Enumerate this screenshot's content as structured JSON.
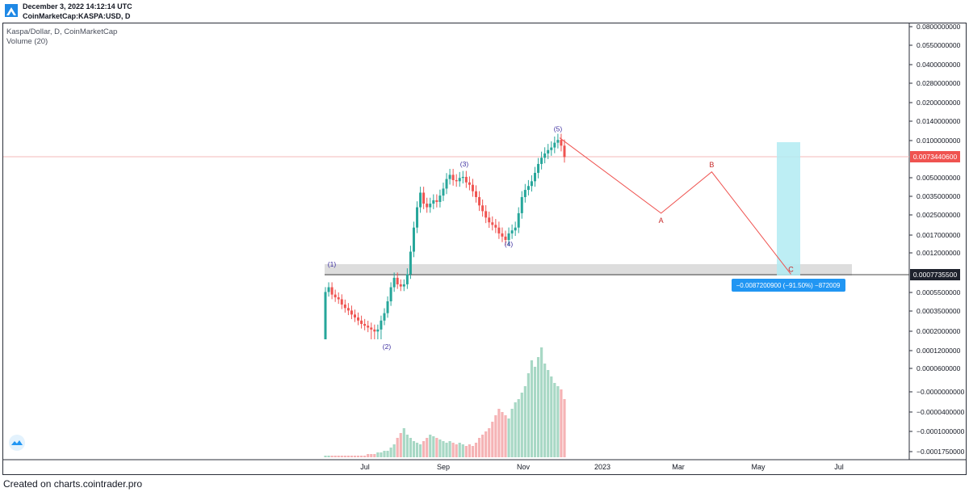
{
  "header": {
    "timestamp": "December 3, 2022 14:12:14 UTC",
    "symbol_line": "CoinMarketCap:KASPA:USD, D"
  },
  "legend": {
    "main": "Kaspa/Dollar, D, CoinMarketCap",
    "volume": "Volume (20)"
  },
  "footer": {
    "text": "Created on charts.cointrader.pro"
  },
  "colors": {
    "up": "#26a69a",
    "down": "#ef5350",
    "vol_up": "#a8d8c5",
    "vol_down": "#f5b3b5",
    "wave_label": "#3d2fa0",
    "abc_label": "#c62828",
    "projection_line": "#ef5350",
    "price_tag_red": "#ef5350",
    "price_tag_dark": "#1e222d",
    "measure_blue": "#2196f3",
    "target_box": "#b2ebf2",
    "support_zone": "#d9d9d9"
  },
  "chart_data": {
    "type": "candlestick",
    "title": "Kaspa/Dollar, D, CoinMarketCap",
    "y_scale": "log",
    "price_axis_labels": [
      "0.0800000000",
      "0.0550000000",
      "0.0400000000",
      "0.0280000000",
      "0.0200000000",
      "0.0140000000",
      "0.0100000000",
      "0.0073440600",
      "0.0050000000",
      "0.0035000000",
      "0.0025000000",
      "0.0017000000",
      "0.0012000000",
      "0.0007735500",
      "0.0005500000",
      "0.0003500000",
      "0.0002000000",
      "0.0001200000",
      "0.0000600000",
      "−0.0000000000",
      "−0.0000400000",
      "−0.0001000000",
      "−0.0001750000"
    ],
    "time_axis_labels": [
      "Jul",
      "Sep",
      "Nov",
      "2023",
      "Mar",
      "May",
      "Jul"
    ],
    "current_price": "0.0073440600",
    "support_price": "0.0007735500",
    "elliott_waves": [
      {
        "label": "(1)",
        "price": 0.00082
      },
      {
        "label": "(2)",
        "price": 0.00018
      },
      {
        "label": "(3)",
        "price": 0.0054
      },
      {
        "label": "(4)",
        "price": 0.0015
      },
      {
        "label": "(5)",
        "price": 0.0104
      }
    ],
    "projection": [
      {
        "label": "",
        "date": "2022-11-20",
        "price": 0.0104
      },
      {
        "label": "A",
        "date": "2023-02-14",
        "price": 0.0025
      },
      {
        "label": "B",
        "date": "2023-03-25",
        "price": 0.0055
      },
      {
        "label": "C",
        "date": "2023-05-25",
        "price": 0.00078
      }
    ],
    "measure_label": "−0.0087200900 (−91.50%) −872009",
    "series_close": [
      0.00052,
      0.00058,
      0.00049,
      0.00046,
      0.00044,
      0.00039,
      0.00036,
      0.00034,
      0.00031,
      0.00029,
      0.00027,
      0.00025,
      0.00024,
      0.00023,
      0.00022,
      0.00021,
      0.00022,
      0.00027,
      0.00032,
      0.00042,
      0.00058,
      0.00072,
      0.00062,
      0.00059,
      0.00062,
      0.00078,
      0.0012,
      0.0019,
      0.0028,
      0.0037,
      0.003,
      0.0028,
      0.003,
      0.0032,
      0.0031,
      0.0035,
      0.004,
      0.0048,
      0.0052,
      0.0047,
      0.0046,
      0.0049,
      0.005,
      0.0045,
      0.0043,
      0.0038,
      0.0034,
      0.0029,
      0.0026,
      0.0023,
      0.0021,
      0.002,
      0.0019,
      0.0017,
      0.0016,
      0.0015,
      0.0017,
      0.0018,
      0.0019,
      0.0025,
      0.0034,
      0.0039,
      0.0042,
      0.0046,
      0.0054,
      0.0064,
      0.0072,
      0.0078,
      0.0083,
      0.0087,
      0.0095,
      0.01,
      0.009,
      0.0073
    ],
    "volume_profile": [
      1,
      1,
      1,
      1,
      1,
      1,
      1,
      1,
      1,
      1,
      1,
      1,
      1,
      2,
      2,
      2,
      3,
      3,
      4,
      4,
      6,
      8,
      12,
      15,
      18,
      14,
      12,
      10,
      9,
      8,
      10,
      12,
      14,
      13,
      12,
      11,
      10,
      9,
      10,
      9,
      8,
      9,
      8,
      7,
      8,
      7,
      9,
      12,
      14,
      16,
      18,
      22,
      26,
      30,
      28,
      26,
      24,
      30,
      34,
      36,
      40,
      44,
      52,
      60,
      56,
      62,
      68,
      58,
      54,
      50,
      46,
      44,
      42,
      36
    ]
  }
}
